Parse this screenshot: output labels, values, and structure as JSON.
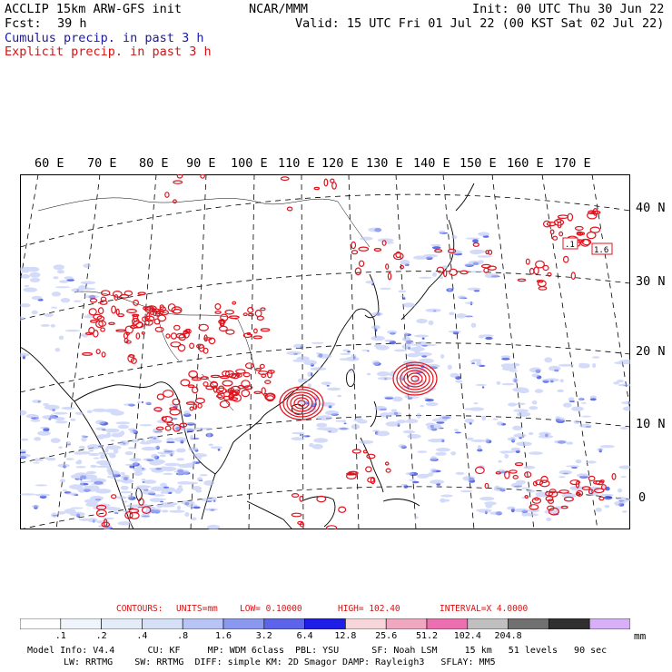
{
  "header": {
    "model": "ACCLIP 15km ARW-GFS init",
    "institution": "NCAR/MMM",
    "init": "Init: 00 UTC Thu 30 Jun 22",
    "fcst_label": "Fcst:",
    "fcst_value": "39 h",
    "valid": "Valid: 15 UTC Fri 01 Jul 22 (00 KST Sat 02 Jul 22)",
    "legend_cumulus": "Cumulus precip. in past 3 h",
    "legend_explicit": "Explicit precip. in past 3 h"
  },
  "map": {
    "lon_labels": [
      "60 E",
      "70 E",
      "80 E",
      "90 E",
      "100 E",
      "110 E",
      "120 E",
      "130 E",
      "140 E",
      "150 E",
      "160 E",
      "170 E"
    ],
    "lat_labels": [
      "40 N",
      "30 N",
      "20 N",
      "10 N",
      "0"
    ],
    "box_labels": [
      ".1",
      "1.6"
    ],
    "colors": {
      "cumulus": "#2a3fe0",
      "explicit": "#e0141e",
      "coast": "#000000",
      "grid": "#000000"
    }
  },
  "contours": {
    "label": "CONTOURS:",
    "units": "UNITS=mm",
    "low": "LOW= 0.10000",
    "high": "HIGH= 102.40",
    "interval": "INTERVAL=X 4.0000"
  },
  "colorbar": {
    "labels": [
      ".1",
      ".2",
      ".4",
      ".8",
      "1.6",
      "3.2",
      "6.4",
      "12.8",
      "25.6",
      "51.2",
      "102.4",
      "204.8"
    ],
    "unit": "mm",
    "colors": [
      "#ffffff",
      "#f0f4fb",
      "#e4ecf8",
      "#d5e0f6",
      "#b8c4f6",
      "#8a98f0",
      "#5c64ea",
      "#1e1ee6",
      "#f6d6da",
      "#f0a8c0",
      "#ec70b0",
      "#c0c0c0",
      "#707070",
      "#303030",
      "#d8b0f8"
    ]
  },
  "footer": {
    "line1": "Model Info: V4.4      CU: KF     MP: WDM 6class  PBL: YSU      SF: Noah LSM     15 km   51 levels   90 sec",
    "line2": "LW: RRTMG    SW: RRTMG  DIFF: simple KM: 2D Smagor DAMP: Rayleigh3   SFLAY: MM5"
  }
}
